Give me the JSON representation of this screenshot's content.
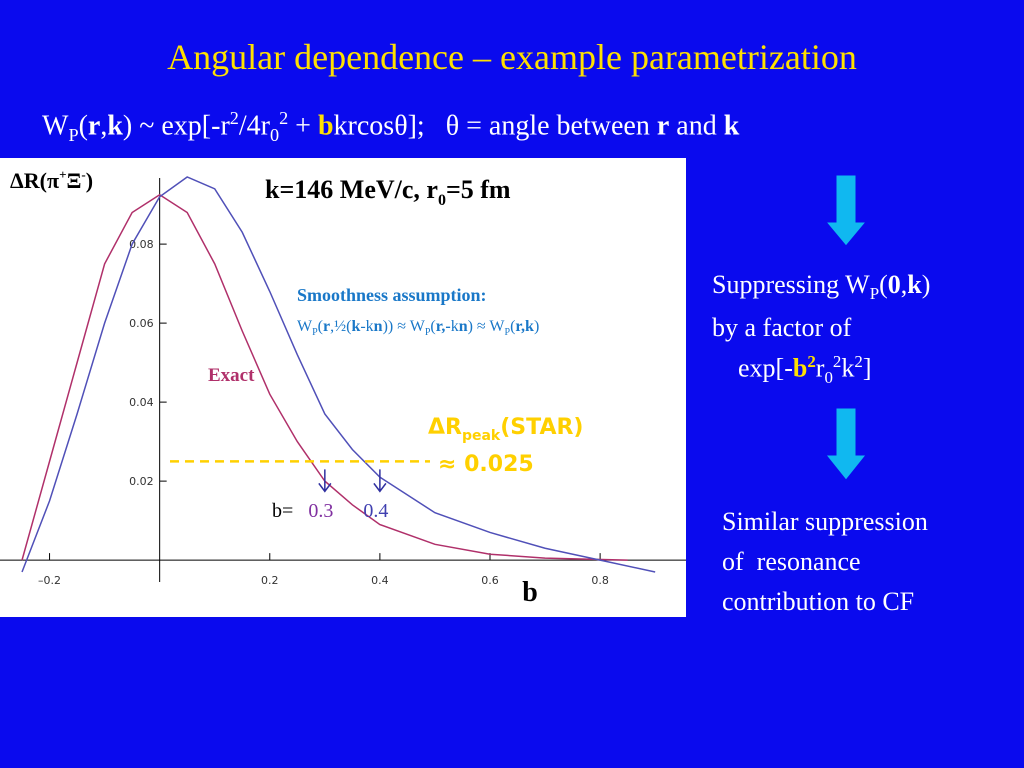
{
  "title": "Angular dependence – example parametrization",
  "formula": [
    "W",
    "P",
    "(",
    "r",
    ",",
    "k",
    ") ~ exp[-r",
    "2",
    "/4r",
    "0",
    "2",
    " + ",
    "b",
    "krcosθ];   θ = angle between ",
    "r",
    " and ",
    "k"
  ],
  "chart_data": {
    "type": "line",
    "title": [
      "k=146 MeV/c, r",
      "0",
      "=5 fm"
    ],
    "ylabel": [
      "ΔR(π",
      "+",
      "Ξ",
      "-",
      ")"
    ],
    "xlabel": "b",
    "xlim": [
      -0.29,
      0.956
    ],
    "ylim": [
      -0.0144,
      0.1018
    ],
    "xticks": [
      {
        "value": -0.2,
        "label": "–0.2"
      },
      0.2,
      0.4,
      0.6,
      0.8
    ],
    "yticks": [
      0.02,
      0.04,
      0.06,
      0.08
    ],
    "series": [
      {
        "name": "Exact",
        "color": "#b0306a",
        "x": [
          -0.25,
          -0.2,
          -0.15,
          -0.1,
          -0.05,
          0,
          0.05,
          0.1,
          0.15,
          0.2,
          0.25,
          0.3,
          0.35,
          0.4,
          0.5,
          0.6,
          0.7,
          0.85
        ],
        "values": [
          0.0,
          0.025,
          0.05,
          0.075,
          0.088,
          0.0925,
          0.088,
          0.075,
          0.058,
          0.042,
          0.03,
          0.02,
          0.014,
          0.009,
          0.004,
          0.0015,
          0.0005,
          0.0
        ]
      },
      {
        "color": "#5050b8",
        "x": [
          -0.25,
          -0.2,
          -0.15,
          -0.1,
          -0.05,
          0,
          0.05,
          0.1,
          0.15,
          0.2,
          0.25,
          0.3,
          0.35,
          0.4,
          0.5,
          0.6,
          0.7,
          0.8,
          0.9
        ],
        "values": [
          -0.003,
          0.015,
          0.037,
          0.06,
          0.08,
          0.092,
          0.097,
          0.094,
          0.083,
          0.068,
          0.052,
          0.037,
          0.028,
          0.021,
          0.012,
          0.007,
          0.003,
          0.0,
          -0.003
        ]
      }
    ],
    "smoothness_title": "Smoothness assumption:",
    "smoothness_formula": [
      "W",
      "P",
      "(",
      "r",
      ",½(",
      "k",
      "-k",
      "n",
      "))  ≈ W",
      "P",
      "(",
      "r,-",
      "k",
      "n",
      ")  ≈ W",
      "P",
      "(",
      "r,k",
      ")"
    ],
    "star_label": [
      "ΔR",
      "peak",
      "(STAR)"
    ],
    "star_value": {
      "value": 0.025,
      "label": "≈ 0.025"
    },
    "b_prefix": "b=",
    "b_markers": [
      0.3,
      0.4
    ]
  },
  "right": {
    "suppress": [
      [
        "Suppressing W",
        "P",
        "(",
        "0",
        ",",
        "k",
        ")"
      ],
      [
        "by a factor of"
      ],
      [
        "exp[-",
        "b",
        "2",
        "r",
        "0",
        "2",
        "k",
        "2",
        "]"
      ]
    ],
    "similar": [
      "Similar suppression",
      "of  resonance",
      "contribution to CF"
    ]
  }
}
